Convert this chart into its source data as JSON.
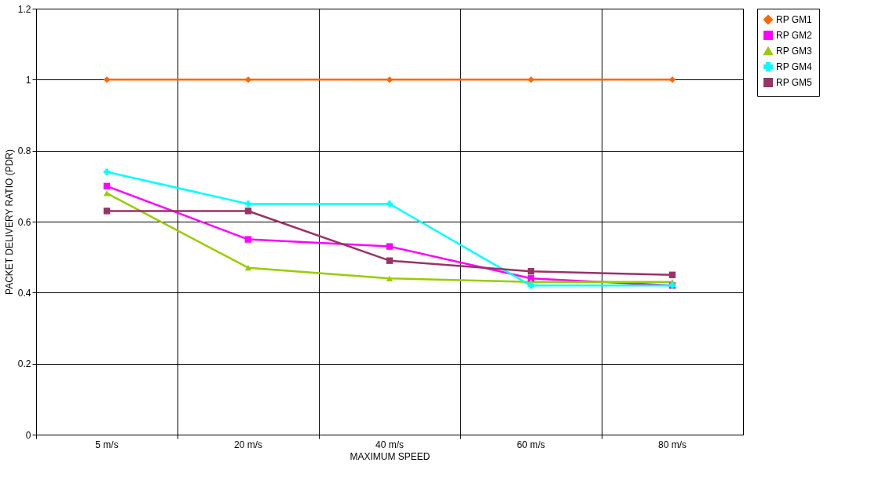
{
  "chart_data": {
    "type": "line",
    "xlabel": "MAXIMUM SPEED",
    "ylabel": "PACKET DELIVERY RATIO (PDR)",
    "categories": [
      "5 m/s",
      "20 m/s",
      "40 m/s",
      "60 m/s",
      "80 m/s"
    ],
    "ylim": [
      0,
      1.2
    ],
    "yticks": [
      0,
      0.2,
      0.4,
      0.6,
      0.8,
      1,
      1.2
    ],
    "grid": true,
    "legend": "right",
    "line_style": "solid",
    "series": [
      {
        "name": "RP GM1",
        "color": "#ff6600",
        "marker": "diamond",
        "values": [
          1,
          1,
          1,
          1,
          1
        ]
      },
      {
        "name": "RP GM2",
        "color": "#ff00ff",
        "marker": "square",
        "values": [
          0.7,
          0.55,
          0.53,
          0.44,
          0.42
        ]
      },
      {
        "name": "RP GM3",
        "color": "#99cc00",
        "marker": "triangle",
        "values": [
          0.68,
          0.47,
          0.44,
          0.43,
          0.43
        ]
      },
      {
        "name": "RP GM4",
        "color": "#00ffff",
        "marker": "cross",
        "values": [
          0.74,
          0.65,
          0.65,
          0.42,
          0.42
        ]
      },
      {
        "name": "RP GM5",
        "color": "#993366",
        "marker": "square",
        "values": [
          0.63,
          0.63,
          0.49,
          0.46,
          0.45
        ]
      }
    ]
  }
}
